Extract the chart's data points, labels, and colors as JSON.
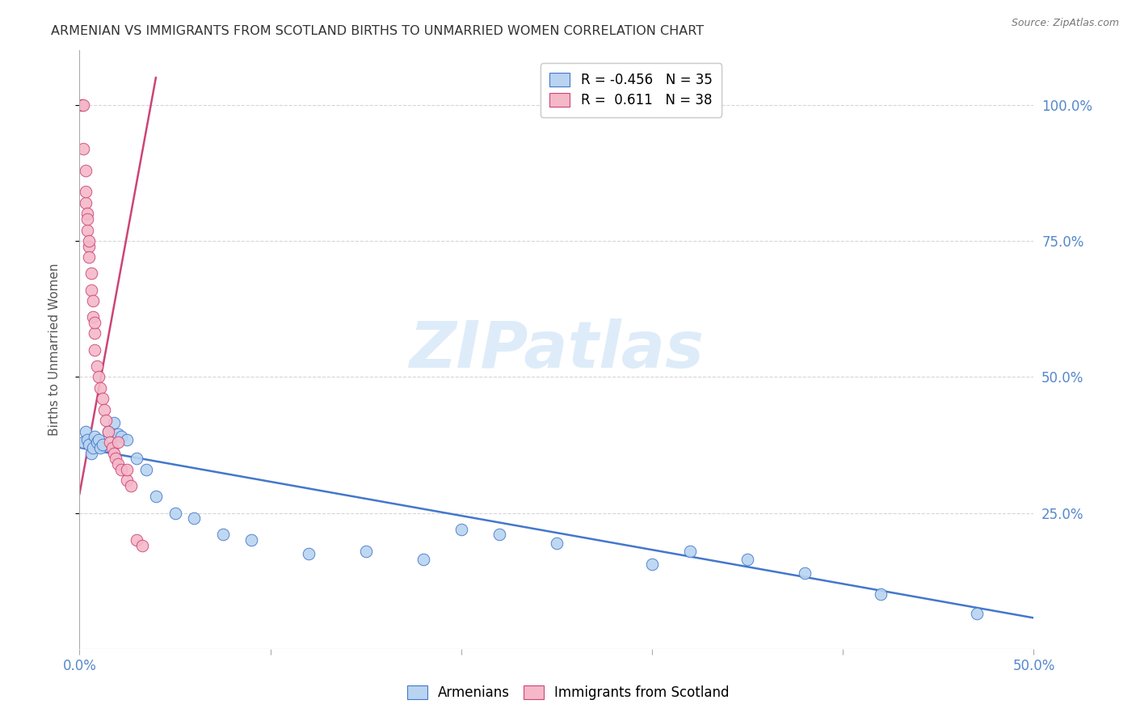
{
  "title": "ARMENIAN VS IMMIGRANTS FROM SCOTLAND BIRTHS TO UNMARRIED WOMEN CORRELATION CHART",
  "source": "Source: ZipAtlas.com",
  "ylabel": "Births to Unmarried Women",
  "right_yticks": [
    "100.0%",
    "75.0%",
    "50.0%",
    "25.0%"
  ],
  "right_ytick_vals": [
    1.0,
    0.75,
    0.5,
    0.25
  ],
  "watermark": "ZIPatlas",
  "legend_inner": [
    "R = -0.456   N = 35",
    "R =  0.611   N = 38"
  ],
  "legend_labels": [
    "Armenians",
    "Immigrants from Scotland"
  ],
  "blue_scatter_x": [
    0.002,
    0.003,
    0.004,
    0.005,
    0.006,
    0.007,
    0.008,
    0.009,
    0.01,
    0.011,
    0.012,
    0.015,
    0.018,
    0.02,
    0.022,
    0.025,
    0.03,
    0.035,
    0.04,
    0.05,
    0.06,
    0.075,
    0.09,
    0.12,
    0.15,
    0.18,
    0.2,
    0.22,
    0.25,
    0.3,
    0.32,
    0.35,
    0.38,
    0.42,
    0.47
  ],
  "blue_scatter_y": [
    0.38,
    0.4,
    0.385,
    0.375,
    0.36,
    0.37,
    0.39,
    0.38,
    0.385,
    0.37,
    0.375,
    0.4,
    0.415,
    0.395,
    0.39,
    0.385,
    0.35,
    0.33,
    0.28,
    0.25,
    0.24,
    0.21,
    0.2,
    0.175,
    0.18,
    0.165,
    0.22,
    0.21,
    0.195,
    0.155,
    0.18,
    0.165,
    0.14,
    0.1,
    0.065
  ],
  "pink_scatter_x": [
    0.001,
    0.002,
    0.002,
    0.003,
    0.003,
    0.004,
    0.004,
    0.005,
    0.005,
    0.006,
    0.006,
    0.007,
    0.007,
    0.008,
    0.008,
    0.009,
    0.01,
    0.011,
    0.012,
    0.013,
    0.014,
    0.015,
    0.016,
    0.017,
    0.018,
    0.019,
    0.02,
    0.022,
    0.025,
    0.027,
    0.03,
    0.033,
    0.003,
    0.004,
    0.005,
    0.008,
    0.02,
    0.025
  ],
  "pink_scatter_y": [
    1.0,
    1.0,
    0.92,
    0.88,
    0.82,
    0.8,
    0.77,
    0.74,
    0.72,
    0.69,
    0.66,
    0.64,
    0.61,
    0.58,
    0.55,
    0.52,
    0.5,
    0.48,
    0.46,
    0.44,
    0.42,
    0.4,
    0.38,
    0.37,
    0.36,
    0.35,
    0.34,
    0.33,
    0.31,
    0.3,
    0.2,
    0.19,
    0.84,
    0.79,
    0.75,
    0.6,
    0.38,
    0.33
  ],
  "blue_line_x": [
    0.0,
    0.5
  ],
  "blue_line_y": [
    0.37,
    0.057
  ],
  "pink_line_x": [
    0.0,
    0.04
  ],
  "pink_line_y": [
    0.285,
    1.05
  ],
  "xlim": [
    0.0,
    0.5
  ],
  "ylim": [
    0.0,
    1.1
  ],
  "title_color": "#333333",
  "scatter_blue_color": "#b8d4f0",
  "scatter_pink_color": "#f4b8c8",
  "line_blue_color": "#4477cc",
  "line_pink_color": "#cc4477",
  "grid_color": "#cccccc",
  "right_axis_color": "#5588cc",
  "background_color": "#ffffff"
}
